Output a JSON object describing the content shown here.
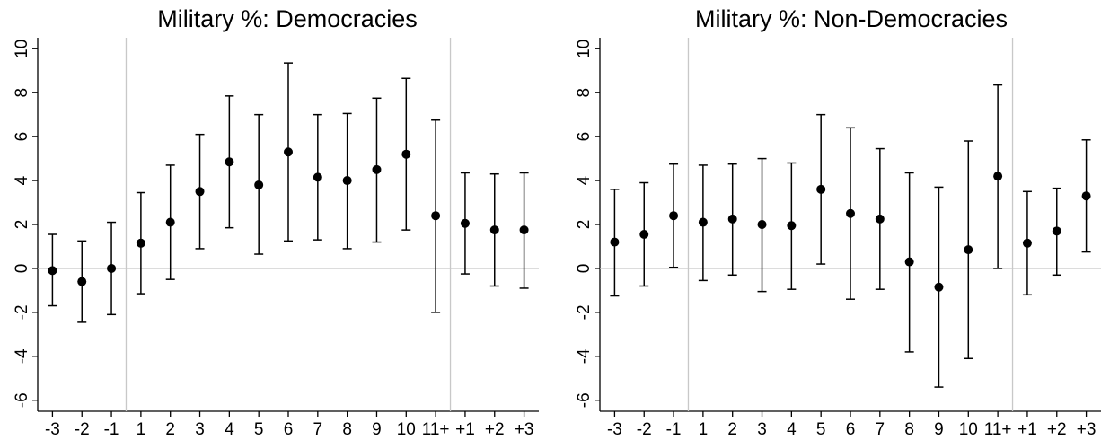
{
  "chart_data": [
    {
      "type": "scatter",
      "subtype": "point-with-error-bars",
      "title": "Military %: Democracies",
      "xlabel": "",
      "ylabel": "",
      "categories": [
        "-3",
        "-2",
        "-1",
        "1",
        "2",
        "3",
        "4",
        "5",
        "6",
        "7",
        "8",
        "9",
        "10",
        "11+",
        "+1",
        "+2",
        "+3"
      ],
      "values": [
        -0.1,
        -0.6,
        0.0,
        1.15,
        2.1,
        3.5,
        4.85,
        3.8,
        5.3,
        4.15,
        4.0,
        4.5,
        5.2,
        2.4,
        2.05,
        1.75,
        1.75
      ],
      "ci_lower": [
        -1.7,
        -2.45,
        -2.1,
        -1.15,
        -0.5,
        0.9,
        1.85,
        0.65,
        1.25,
        1.3,
        0.9,
        1.2,
        1.75,
        -2.0,
        -0.25,
        -0.8,
        -0.9
      ],
      "ci_upper": [
        1.55,
        1.25,
        2.1,
        3.45,
        4.7,
        6.1,
        7.85,
        7.0,
        9.35,
        7.0,
        7.05,
        7.75,
        8.65,
        6.75,
        4.35,
        4.3,
        4.35
      ],
      "ylim": [
        -6.5,
        10.5
      ],
      "yticks": [
        -6,
        -4,
        -2,
        0,
        2,
        4,
        6,
        8,
        10
      ],
      "reference_line_y": 0,
      "vertical_separators_after": [
        "-1",
        "11+"
      ],
      "grid": false,
      "colors": {
        "marker": "#000000",
        "reference": "#c8c8c8"
      }
    },
    {
      "type": "scatter",
      "subtype": "point-with-error-bars",
      "title": "Military %: Non-Democracies",
      "xlabel": "",
      "ylabel": "",
      "categories": [
        "-3",
        "-2",
        "-1",
        "1",
        "2",
        "3",
        "4",
        "5",
        "6",
        "7",
        "8",
        "9",
        "10",
        "11+",
        "+1",
        "+2",
        "+3"
      ],
      "values": [
        1.2,
        1.55,
        2.4,
        2.1,
        2.25,
        2.0,
        1.95,
        3.6,
        2.5,
        2.25,
        0.3,
        -0.85,
        0.85,
        4.2,
        1.15,
        1.7,
        3.3
      ],
      "ci_lower": [
        -1.25,
        -0.8,
        0.05,
        -0.55,
        -0.3,
        -1.05,
        -0.95,
        0.2,
        -1.4,
        -0.95,
        -3.8,
        -5.4,
        -4.1,
        0.0,
        -1.2,
        -0.3,
        0.75
      ],
      "ci_upper": [
        3.6,
        3.9,
        4.75,
        4.7,
        4.75,
        5.0,
        4.8,
        7.0,
        6.4,
        5.45,
        4.35,
        3.7,
        5.8,
        8.35,
        3.5,
        3.65,
        5.85
      ],
      "ylim": [
        -6.5,
        10.5
      ],
      "yticks": [
        -6,
        -4,
        -2,
        0,
        2,
        4,
        6,
        8,
        10
      ],
      "reference_line_y": 0,
      "vertical_separators_after": [
        "-1",
        "11+"
      ],
      "grid": false,
      "colors": {
        "marker": "#000000",
        "reference": "#c8c8c8"
      }
    }
  ]
}
